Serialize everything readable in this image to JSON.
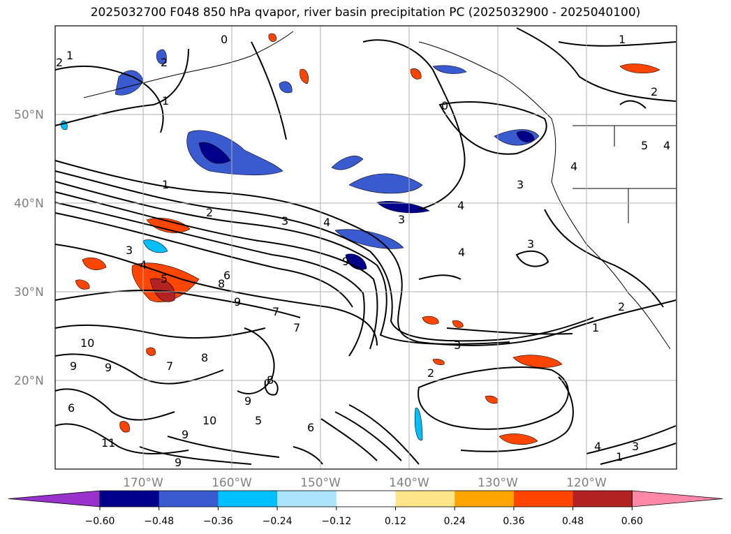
{
  "title": "2025032700 F048 850 hPa qvapor, river basin precipitation PC (2025032900 - 2025040100)",
  "lat_labels": [
    "50°N",
    "40°N",
    "30°N",
    "20°N"
  ],
  "lon_labels": [
    "170°W",
    "160°W",
    "150°W",
    "140°W",
    "130°W",
    "120°W"
  ],
  "colorbar": {
    "ticks": [
      "−0.60",
      "−0.48",
      "−0.36",
      "−0.24",
      "−0.12",
      "0.12",
      "0.24",
      "0.36",
      "0.48",
      "0.60"
    ],
    "colors": [
      "#9932cc",
      "#00008b",
      "#3a5bd0",
      "#00bfff",
      "#aee4fb",
      "#ffffff",
      "#fde68a",
      "#ffa500",
      "#ff4500",
      "#b22222",
      "#ff88a8"
    ]
  },
  "contour_labels": [
    "1",
    "2",
    "1",
    "1",
    "2",
    "3",
    "4",
    "3",
    "6",
    "7",
    "9",
    "4",
    "5",
    "8",
    "9",
    "10",
    "9",
    "7",
    "8",
    "9",
    "6",
    "9",
    "7",
    "8",
    "11",
    "10",
    "9",
    "9",
    "6",
    "5",
    "3",
    "2",
    "3",
    "4",
    "3",
    "4",
    "1",
    "2",
    "0",
    "1",
    "2",
    "3",
    "4",
    "5",
    "4",
    "4",
    "3",
    "1",
    "2",
    "0"
  ]
}
